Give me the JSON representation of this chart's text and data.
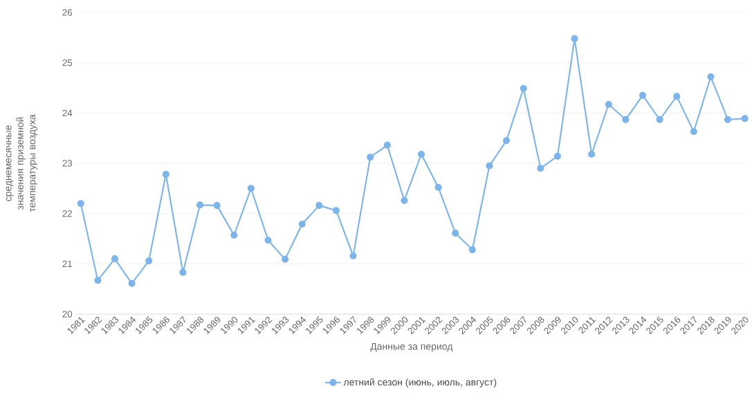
{
  "chart_data": {
    "type": "line",
    "xlabel": "Данные за период",
    "ylabel": "среднемесячные значения приземной температуры воздуха",
    "categories": [
      "1981",
      "1982",
      "1983",
      "1984",
      "1985",
      "1986",
      "1987",
      "1988",
      "1989",
      "1990",
      "1991",
      "1992",
      "1993",
      "1994",
      "1995",
      "1996",
      "1997",
      "1998",
      "1999",
      "2000",
      "2001",
      "2002",
      "2003",
      "2004",
      "2005",
      "2006",
      "2007",
      "2008",
      "2009",
      "2010",
      "2011",
      "2012",
      "2013",
      "2014",
      "2015",
      "2016",
      "2017",
      "2018",
      "2019",
      "2020"
    ],
    "series": [
      {
        "name": "летний сезон (июнь, июль, август)",
        "color": "#7cb5ec",
        "values": [
          22.2,
          20.67,
          21.1,
          20.61,
          21.06,
          22.78,
          20.83,
          22.17,
          22.16,
          21.57,
          22.5,
          21.47,
          21.09,
          21.79,
          22.16,
          22.06,
          21.16,
          23.12,
          23.36,
          22.26,
          23.18,
          22.52,
          21.61,
          21.28,
          22.95,
          23.45,
          24.49,
          22.9,
          23.14,
          25.48,
          23.18,
          24.17,
          23.87,
          24.35,
          23.87,
          24.33,
          23.63,
          24.72,
          23.87,
          23.89
        ]
      }
    ],
    "ylim": [
      20,
      26
    ],
    "yticks": [
      20,
      21,
      22,
      23,
      24,
      25,
      26
    ],
    "grid": "y",
    "legend": "bottom",
    "marker": "circle",
    "line_style": "solid"
  }
}
